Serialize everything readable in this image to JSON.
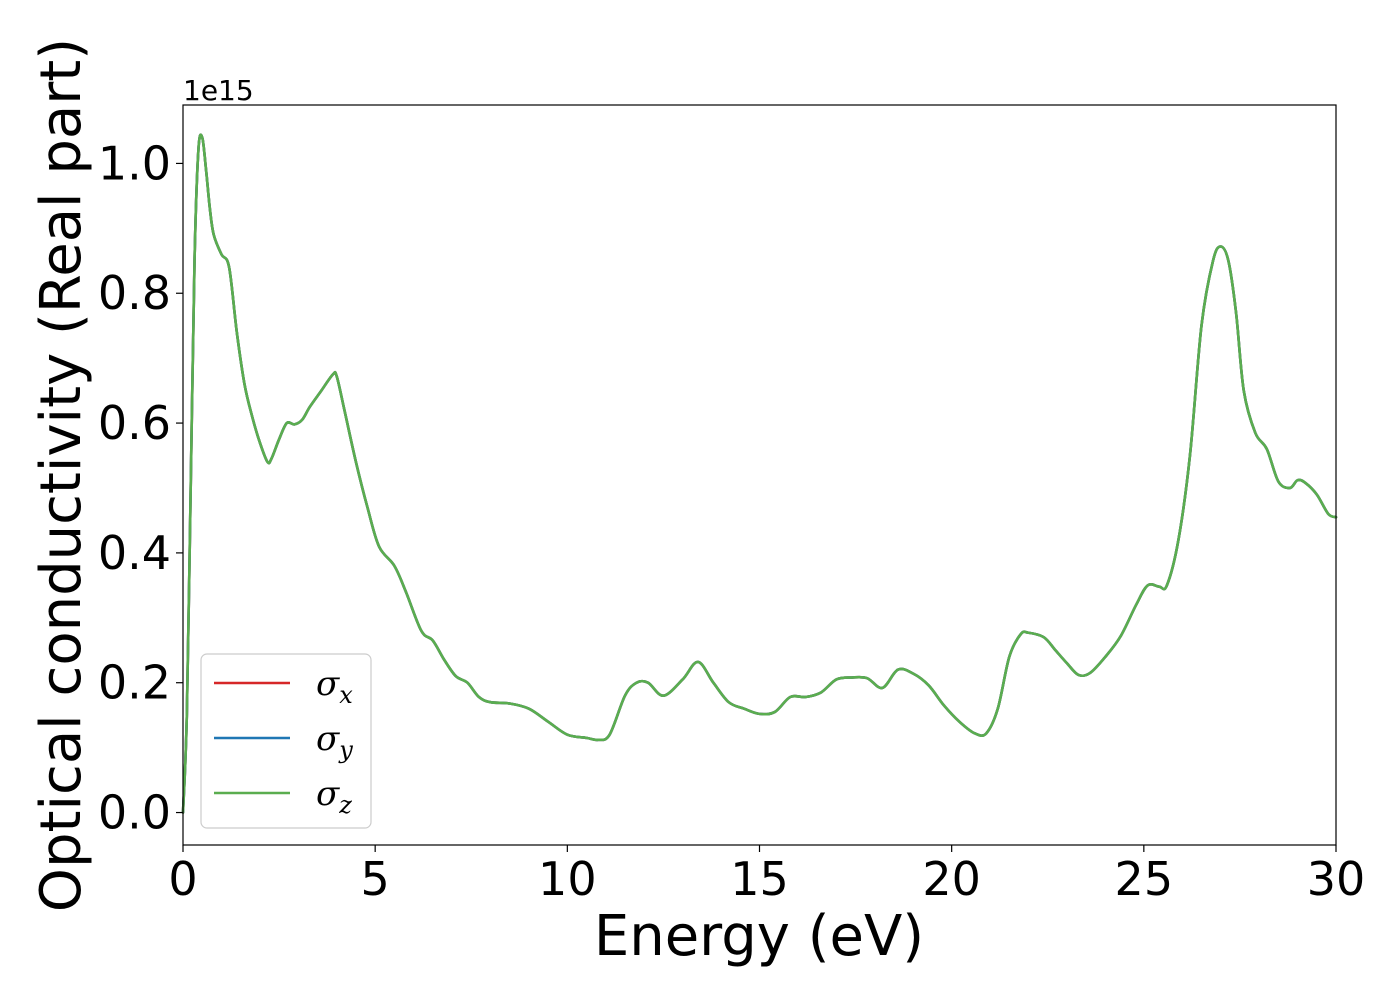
{
  "chart_data": {
    "type": "line",
    "xlabel": "Energy (eV)",
    "ylabel": "Optical conductivity (Real part)",
    "y_offset_label": "1e15",
    "xlim": [
      0,
      30
    ],
    "ylim": [
      -0.05,
      1.09
    ],
    "x_ticks": [
      0,
      5,
      10,
      15,
      20,
      25,
      30
    ],
    "x_tick_labels": [
      "0",
      "5",
      "10",
      "15",
      "20",
      "25",
      "30"
    ],
    "y_ticks": [
      0.0,
      0.2,
      0.4,
      0.6,
      0.8,
      1.0
    ],
    "y_tick_labels": [
      "0.0",
      "0.2",
      "0.4",
      "0.6",
      "0.8",
      "1.0"
    ],
    "grid": false,
    "legend_position": "lower-left",
    "x": [
      0,
      0.1,
      0.2,
      0.3,
      0.4,
      0.5,
      0.6,
      0.7,
      0.8,
      1.0,
      1.2,
      1.4,
      1.6,
      1.8,
      2.0,
      2.2,
      2.3,
      2.5,
      2.7,
      2.9,
      3.1,
      3.3,
      3.6,
      3.9,
      4.0,
      4.2,
      4.5,
      4.8,
      5.1,
      5.5,
      5.8,
      6.2,
      6.5,
      6.8,
      7.1,
      7.4,
      7.7,
      8.0,
      8.5,
      9.0,
      9.5,
      10.0,
      10.5,
      10.8,
      11.1,
      11.5,
      11.8,
      12.1,
      12.5,
      13.0,
      13.4,
      13.8,
      14.2,
      14.6,
      15.0,
      15.4,
      15.8,
      16.2,
      16.6,
      17.0,
      17.4,
      17.8,
      18.2,
      18.6,
      19.0,
      19.4,
      19.8,
      20.2,
      20.6,
      20.9,
      21.2,
      21.5,
      21.8,
      22.0,
      22.4,
      22.7,
      23.0,
      23.3,
      23.6,
      24.0,
      24.4,
      24.8,
      25.1,
      25.4,
      25.6,
      25.9,
      26.2,
      26.5,
      26.8,
      27.0,
      27.2,
      27.4,
      27.6,
      27.9,
      28.2,
      28.5,
      28.8,
      29.0,
      29.2,
      29.5,
      29.8,
      30.0
    ],
    "series": [
      {
        "name": "σ_x",
        "color": "#d62728",
        "values": [
          0.0,
          0.15,
          0.5,
          0.85,
          1.02,
          1.04,
          0.99,
          0.93,
          0.89,
          0.86,
          0.84,
          0.74,
          0.66,
          0.61,
          0.57,
          0.54,
          0.545,
          0.575,
          0.6,
          0.598,
          0.605,
          0.625,
          0.65,
          0.675,
          0.672,
          0.62,
          0.54,
          0.47,
          0.41,
          0.38,
          0.34,
          0.28,
          0.265,
          0.235,
          0.21,
          0.2,
          0.178,
          0.17,
          0.168,
          0.16,
          0.14,
          0.12,
          0.115,
          0.112,
          0.12,
          0.18,
          0.2,
          0.2,
          0.18,
          0.205,
          0.232,
          0.2,
          0.17,
          0.16,
          0.152,
          0.155,
          0.178,
          0.178,
          0.185,
          0.205,
          0.208,
          0.207,
          0.192,
          0.22,
          0.214,
          0.196,
          0.165,
          0.14,
          0.122,
          0.122,
          0.16,
          0.24,
          0.275,
          0.277,
          0.27,
          0.25,
          0.23,
          0.212,
          0.215,
          0.24,
          0.272,
          0.32,
          0.35,
          0.348,
          0.35,
          0.42,
          0.55,
          0.75,
          0.85,
          0.872,
          0.85,
          0.77,
          0.65,
          0.585,
          0.56,
          0.51,
          0.5,
          0.512,
          0.508,
          0.49,
          0.46,
          0.455
        ]
      },
      {
        "name": "σ_y",
        "color": "#1f77b4",
        "values": [
          0.0,
          0.15,
          0.5,
          0.85,
          1.02,
          1.04,
          0.99,
          0.93,
          0.89,
          0.86,
          0.84,
          0.74,
          0.66,
          0.61,
          0.57,
          0.54,
          0.545,
          0.575,
          0.6,
          0.598,
          0.605,
          0.625,
          0.65,
          0.675,
          0.672,
          0.62,
          0.54,
          0.47,
          0.41,
          0.38,
          0.34,
          0.28,
          0.265,
          0.235,
          0.21,
          0.2,
          0.178,
          0.17,
          0.168,
          0.16,
          0.14,
          0.12,
          0.115,
          0.112,
          0.12,
          0.18,
          0.2,
          0.2,
          0.18,
          0.205,
          0.232,
          0.2,
          0.17,
          0.16,
          0.152,
          0.155,
          0.178,
          0.178,
          0.185,
          0.205,
          0.208,
          0.207,
          0.192,
          0.22,
          0.214,
          0.196,
          0.165,
          0.14,
          0.122,
          0.122,
          0.16,
          0.24,
          0.275,
          0.277,
          0.27,
          0.25,
          0.23,
          0.212,
          0.215,
          0.24,
          0.272,
          0.32,
          0.35,
          0.348,
          0.35,
          0.42,
          0.55,
          0.75,
          0.85,
          0.872,
          0.85,
          0.77,
          0.65,
          0.585,
          0.56,
          0.51,
          0.5,
          0.512,
          0.508,
          0.49,
          0.46,
          0.455
        ]
      },
      {
        "name": "σ_z",
        "color": "#5aad4f",
        "values": [
          0.0,
          0.15,
          0.5,
          0.85,
          1.02,
          1.04,
          0.99,
          0.93,
          0.89,
          0.86,
          0.84,
          0.74,
          0.66,
          0.61,
          0.57,
          0.54,
          0.545,
          0.575,
          0.6,
          0.598,
          0.605,
          0.625,
          0.65,
          0.675,
          0.672,
          0.62,
          0.54,
          0.47,
          0.41,
          0.38,
          0.34,
          0.28,
          0.265,
          0.235,
          0.21,
          0.2,
          0.178,
          0.17,
          0.168,
          0.16,
          0.14,
          0.12,
          0.115,
          0.112,
          0.12,
          0.18,
          0.2,
          0.2,
          0.18,
          0.205,
          0.232,
          0.2,
          0.17,
          0.16,
          0.152,
          0.155,
          0.178,
          0.178,
          0.185,
          0.205,
          0.208,
          0.207,
          0.192,
          0.22,
          0.214,
          0.196,
          0.165,
          0.14,
          0.122,
          0.122,
          0.16,
          0.24,
          0.275,
          0.277,
          0.27,
          0.25,
          0.23,
          0.212,
          0.215,
          0.24,
          0.272,
          0.32,
          0.35,
          0.348,
          0.35,
          0.42,
          0.55,
          0.75,
          0.85,
          0.872,
          0.85,
          0.77,
          0.65,
          0.585,
          0.56,
          0.51,
          0.5,
          0.512,
          0.508,
          0.49,
          0.46,
          0.455
        ]
      }
    ],
    "legend": [
      {
        "symbol": "σ",
        "subscript": "x",
        "color": "#d62728"
      },
      {
        "symbol": "σ",
        "subscript": "y",
        "color": "#1f77b4"
      },
      {
        "symbol": "σ",
        "subscript": "z",
        "color": "#5aad4f"
      }
    ]
  }
}
